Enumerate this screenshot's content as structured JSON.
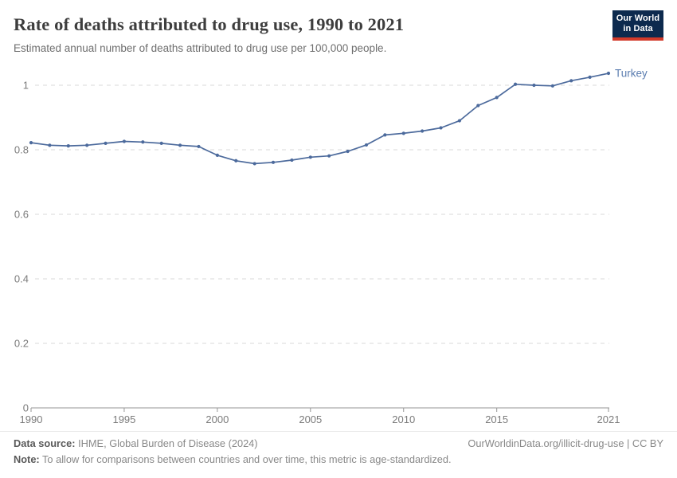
{
  "header": {
    "title": "Rate of deaths attributed to drug use, 1990 to 2021",
    "subtitle": "Estimated annual number of deaths attributed to drug use per 100,000 people.",
    "logo": {
      "line1": "Our World",
      "line2": "in Data",
      "bg_color": "#0d2a4e",
      "accent_color": "#d23a2a"
    }
  },
  "chart_data": {
    "type": "line",
    "title": "Rate of deaths attributed to drug use, 1990 to 2021",
    "xlabel": "",
    "ylabel": "",
    "x": [
      1990,
      1991,
      1992,
      1993,
      1994,
      1995,
      1996,
      1997,
      1998,
      1999,
      2000,
      2001,
      2002,
      2003,
      2004,
      2005,
      2006,
      2007,
      2008,
      2009,
      2010,
      2011,
      2012,
      2013,
      2014,
      2015,
      2016,
      2017,
      2018,
      2019,
      2020,
      2021
    ],
    "series": [
      {
        "name": "Turkey",
        "color": "#4c6a9c",
        "label_color": "#5b7db0",
        "values": [
          0.822,
          0.814,
          0.812,
          0.814,
          0.82,
          0.826,
          0.824,
          0.82,
          0.814,
          0.81,
          0.783,
          0.766,
          0.757,
          0.761,
          0.768,
          0.777,
          0.781,
          0.795,
          0.815,
          0.846,
          0.851,
          0.858,
          0.868,
          0.89,
          0.937,
          0.962,
          1.003,
          1.0,
          0.998,
          1.014,
          1.025,
          1.037
        ]
      }
    ],
    "ylim": [
      0,
      1.05
    ],
    "yticks": [
      0,
      0.2,
      0.4,
      0.6,
      0.8,
      1
    ],
    "xticks": [
      1990,
      1995,
      2000,
      2005,
      2010,
      2015,
      2021
    ],
    "grid": "horizontal-dashed",
    "legend_position": "end-of-line",
    "grid_color": "#d9d9d9",
    "axis_color": "#969696",
    "tick_label_color": "#7b7b7b"
  },
  "footer": {
    "datasource_label": "Data source:",
    "datasource_value": " IHME, Global Burden of Disease (2024)",
    "credit": "OurWorldinData.org/illicit-drug-use | CC BY",
    "note_label": "Note:",
    "note_value": " To allow for comparisons between countries and over time, this metric is age-standardized."
  }
}
